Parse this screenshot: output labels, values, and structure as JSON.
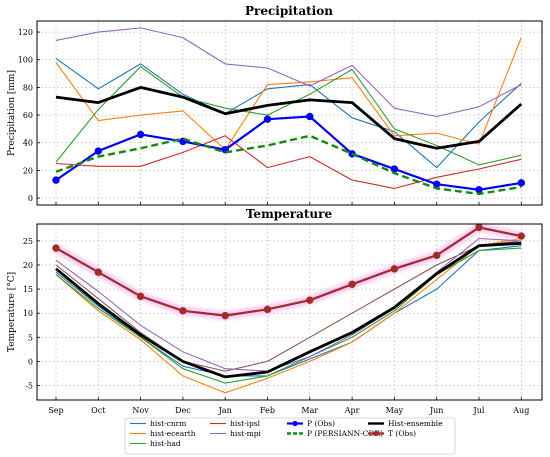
{
  "chart_data": [
    {
      "type": "line",
      "title": "Precipitation",
      "xlabel": "",
      "ylabel": "Precipitation [mm]",
      "categories": [
        "Sep",
        "Oct",
        "Nov",
        "Dec",
        "Jan",
        "Feb",
        "Mar",
        "Apr",
        "May",
        "Jun",
        "Jul",
        "Aug"
      ],
      "ylim": [
        -5,
        128
      ],
      "yticks": [
        0,
        20,
        40,
        60,
        80,
        100,
        120
      ],
      "series": [
        {
          "name": "hist-cnrm",
          "color": "#1f77b4",
          "values": [
            101,
            79,
            97,
            75,
            61,
            79,
            82,
            58,
            48,
            22,
            55,
            83
          ]
        },
        {
          "name": "hist-ecearth",
          "color": "#ff7f0e",
          "values": [
            98,
            56,
            60,
            63,
            35,
            82,
            84,
            87,
            45,
            47,
            39,
            116
          ]
        },
        {
          "name": "hist-had",
          "color": "#2ca02c",
          "values": [
            26,
            64,
            95,
            73,
            65,
            60,
            75,
            93,
            50,
            38,
            24,
            31
          ]
        },
        {
          "name": "hist-ipsl",
          "color": "#d62728",
          "values": [
            25,
            23,
            23,
            33,
            45,
            22,
            30,
            13,
            7,
            15,
            21,
            28
          ]
        },
        {
          "name": "hist-mpi",
          "color": "#9467bd",
          "values": [
            114,
            120,
            123,
            116,
            97,
            94,
            81,
            96,
            65,
            59,
            66,
            82
          ]
        },
        {
          "name": "P (Obs)",
          "color": "#0000ff",
          "values": [
            13,
            34,
            46,
            41,
            35,
            57,
            59,
            32,
            21,
            10,
            6,
            11
          ]
        },
        {
          "name": "P (PERSIANN-CDR)",
          "color": "#118c11",
          "values": [
            19,
            30,
            36,
            43,
            33,
            38,
            45,
            32,
            18,
            7,
            3,
            8
          ]
        },
        {
          "name": "Hist-ensemble",
          "color": "#000000",
          "values": [
            73,
            69,
            80,
            73,
            61,
            67,
            71,
            69,
            43,
            36,
            41,
            68
          ]
        }
      ]
    },
    {
      "type": "line",
      "title": "Temperature",
      "xlabel": "",
      "ylabel": "Temperature [°C]",
      "categories": [
        "Sep",
        "Oct",
        "Nov",
        "Dec",
        "Jan",
        "Feb",
        "Mar",
        "Apr",
        "May",
        "Jun",
        "Jul",
        "Aug"
      ],
      "ylim": [
        -8,
        28.5
      ],
      "yticks": [
        -5,
        0,
        5,
        10,
        15,
        20,
        25
      ],
      "series": [
        {
          "name": "hist-cnrm",
          "color": "#1f77b4",
          "values": [
            18.5,
            11.5,
            5,
            -1,
            -3,
            -3,
            0.5,
            4,
            10,
            15,
            23,
            24
          ]
        },
        {
          "name": "hist-ecearth",
          "color": "#ff7f0e",
          "values": [
            18,
            10.5,
            4.5,
            -3,
            -6.5,
            -3.5,
            0,
            4,
            10,
            17,
            24,
            25.5
          ]
        },
        {
          "name": "hist-had",
          "color": "#2ca02c",
          "values": [
            18,
            11,
            5,
            -1.5,
            -4.5,
            -3,
            1,
            5,
            10.5,
            18,
            23,
            23.5
          ]
        },
        {
          "name": "hist-ipsl",
          "color": "#8c564b",
          "values": [
            20,
            13,
            6,
            0,
            -2,
            0,
            5,
            10,
            15,
            20,
            24,
            25
          ]
        },
        {
          "name": "hist-mpi",
          "color": "#9467bd",
          "values": [
            21,
            14.5,
            7.5,
            2,
            -1.5,
            -2,
            1,
            5.5,
            11,
            18.5,
            25.5,
            25
          ]
        },
        {
          "name": "T (Obs)",
          "color": "#a52a2a",
          "values": [
            23.5,
            18.5,
            13.5,
            10.5,
            9.5,
            10.8,
            12.7,
            16,
            19.2,
            22,
            27.8,
            26
          ]
        },
        {
          "name": "Hist-ensemble",
          "color": "#000000",
          "values": [
            19.2,
            12,
            5.5,
            0,
            -3.2,
            -2.2,
            2,
            6,
            11.2,
            18.2,
            24,
            24.5
          ]
        }
      ]
    }
  ],
  "legend": {
    "placement": "bottom-center",
    "columns": [
      [
        "hist-cnrm",
        "hist-ecearth",
        "hist-had"
      ],
      [
        "hist-ipsl",
        "hist-mpi"
      ],
      [
        "P (Obs)",
        "P (PERSIANN-CDR)"
      ],
      [
        "Hist-ensemble",
        "T (Obs)"
      ]
    ]
  }
}
